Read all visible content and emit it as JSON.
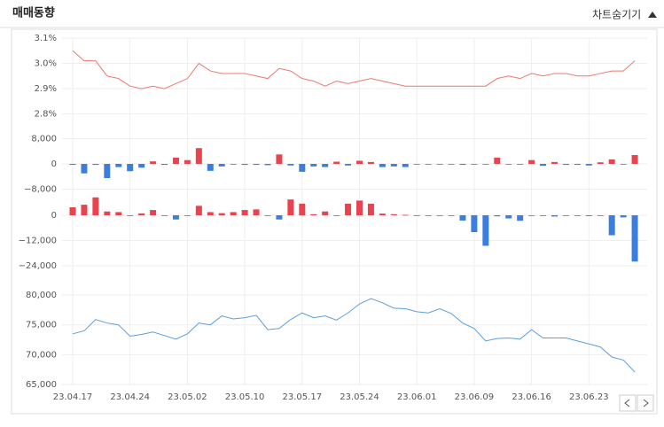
{
  "header": {
    "title": "매매동향",
    "toggle": "차트숨기기"
  },
  "chart_data": [
    {
      "type": "line",
      "color": "#f0776f",
      "values": [
        3.05,
        3.01,
        3.01,
        2.95,
        2.94,
        2.91,
        2.9,
        2.91,
        2.9,
        2.92,
        2.94,
        3.0,
        2.97,
        2.96,
        2.96,
        2.96,
        2.95,
        2.94,
        2.98,
        2.97,
        2.94,
        2.93,
        2.91,
        2.93,
        2.92,
        2.93,
        2.94,
        2.93,
        2.92,
        2.91,
        2.91,
        2.91,
        2.91,
        2.91,
        2.91,
        2.91,
        2.91,
        2.94,
        2.95,
        2.94,
        2.96,
        2.95,
        2.96,
        2.96,
        2.95,
        2.95,
        2.96,
        2.97,
        2.97,
        3.01
      ],
      "ylim": [
        2.76,
        3.1
      ],
      "yticks": [
        {
          "value": 3.1,
          "label": "3.1%"
        },
        {
          "value": 3.0,
          "label": "3.0%"
        },
        {
          "value": 2.9,
          "label": "2.9%"
        },
        {
          "value": 2.8,
          "label": "2.8%"
        }
      ],
      "grid": true
    },
    {
      "type": "bar",
      "positive_color": "#e8434e",
      "negative_color": "#3a7fe0",
      "values": [
        -300,
        -3000,
        -300,
        -4500,
        -1000,
        -2300,
        -1200,
        800,
        -300,
        2000,
        1200,
        5000,
        -2200,
        -800,
        0,
        -300,
        -300,
        -400,
        3000,
        -500,
        -2500,
        -800,
        -1000,
        700,
        -500,
        1000,
        600,
        -1000,
        -800,
        -1000,
        0,
        0,
        0,
        0,
        -300,
        0,
        0,
        2000,
        0,
        0,
        1200,
        -600,
        600,
        -300,
        -300,
        -500,
        500,
        1400,
        0,
        2800
      ],
      "ylim": [
        -9000,
        10000
      ],
      "yticks": [
        {
          "value": 8000,
          "label": "8,000"
        },
        0,
        {
          "value": -8000,
          "label": "−8,000"
        }
      ],
      "grid": true
    },
    {
      "type": "bar",
      "positive_color": "#e8434e",
      "negative_color": "#3a7fe0",
      "values": [
        3800,
        5000,
        8500,
        1800,
        1500,
        -200,
        900,
        2500,
        -300,
        -2000,
        0,
        4500,
        1500,
        1000,
        1500,
        2500,
        2800,
        -200,
        -2000,
        7500,
        5500,
        500,
        1800,
        0,
        5500,
        7000,
        5500,
        800,
        500,
        200,
        0,
        0,
        0,
        -200,
        -2500,
        -8000,
        -14500,
        -500,
        -1500,
        -2600,
        0,
        0,
        -600,
        0,
        -300,
        -400,
        0,
        -9500,
        -1000,
        -22000
      ],
      "ylim": [
        -26000,
        10000
      ],
      "yticks": [
        0,
        {
          "value": -12000,
          "label": "−12,000"
        },
        {
          "value": -24000,
          "label": "−24,000"
        }
      ],
      "grid": true
    },
    {
      "type": "line",
      "color": "#5a9fdc",
      "categories": [
        "23.04.17",
        null,
        null,
        null,
        null,
        "23.04.24",
        null,
        null,
        null,
        null,
        "23.05.02",
        null,
        null,
        null,
        null,
        "23.05.10",
        null,
        null,
        null,
        null,
        "23.05.17",
        null,
        null,
        null,
        null,
        "23.05.24",
        null,
        null,
        null,
        null,
        "23.06.01",
        null,
        null,
        null,
        null,
        "23.06.09",
        null,
        null,
        null,
        null,
        "23.06.16",
        null,
        null,
        null,
        null,
        "23.06.23",
        null,
        null,
        null,
        null
      ],
      "values": [
        73500,
        74000,
        75900,
        75300,
        75000,
        73100,
        73400,
        73800,
        73200,
        72600,
        73500,
        75300,
        75000,
        76500,
        76000,
        76200,
        76600,
        74200,
        74400,
        75900,
        77000,
        76200,
        76500,
        75800,
        77000,
        78500,
        79400,
        78700,
        77800,
        77700,
        77200,
        77000,
        77700,
        76900,
        75300,
        74400,
        72300,
        72700,
        72800,
        72600,
        74200,
        72800,
        72800,
        72800,
        72300,
        71800,
        71300,
        69600,
        69100,
        67100
      ],
      "ylim": [
        65000,
        83500
      ],
      "yticks": [
        {
          "value": 80000,
          "label": "80,000"
        },
        {
          "value": 75000,
          "label": "75,000"
        },
        {
          "value": 70000,
          "label": "70,000"
        },
        {
          "value": 65000,
          "label": "65,000"
        }
      ],
      "grid": true
    }
  ]
}
